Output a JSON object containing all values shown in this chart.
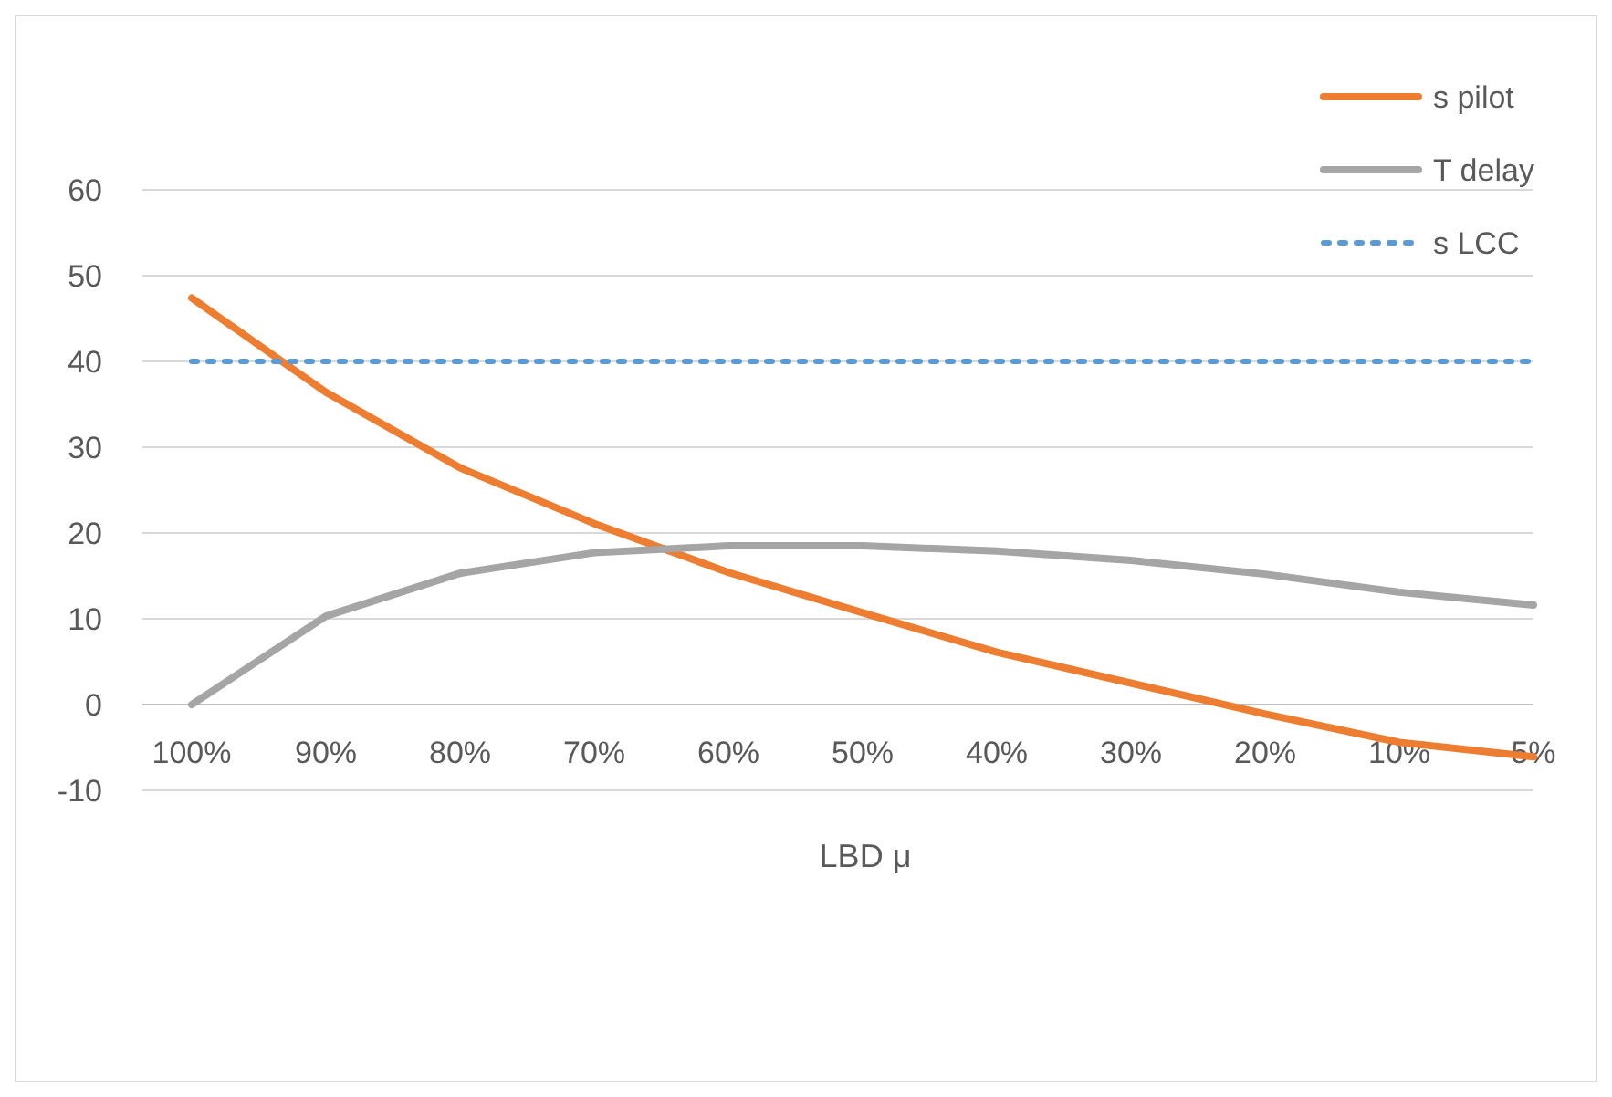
{
  "chart_data": {
    "type": "line",
    "xlabel": "LBD μ",
    "categories": [
      "100%",
      "90%",
      "80%",
      "70%",
      "60%",
      "50%",
      "40%",
      "30%",
      "20%",
      "10%",
      "5%"
    ],
    "series": [
      {
        "name": "s pilot",
        "color": "#ed7d31",
        "values": [
          47.4,
          36.4,
          27.6,
          21.1,
          15.4,
          10.7,
          6.1,
          2.5,
          -1.1,
          -4.4,
          -6.1
        ]
      },
      {
        "name": "T delay",
        "color": "#a5a5a5",
        "values": [
          0,
          10.3,
          15.3,
          17.7,
          18.5,
          18.5,
          17.9,
          16.8,
          15.2,
          13.1,
          11.6
        ]
      },
      {
        "name": "s LCC",
        "color": "#5b9bd5",
        "line_style": "dotted",
        "values": [
          40,
          40,
          40,
          40,
          40,
          40,
          40,
          40,
          40,
          40,
          40
        ]
      }
    ],
    "ylim": [
      -10,
      60
    ],
    "yticks": [
      -10,
      0,
      10,
      20,
      30,
      40,
      50,
      60
    ],
    "grid": "y",
    "legend": "top right",
    "marker": "none"
  }
}
